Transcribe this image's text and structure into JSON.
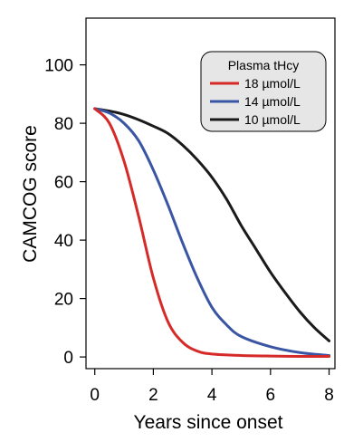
{
  "chart_data": {
    "type": "line",
    "title": "",
    "xlabel": "Years since onset",
    "ylabel": "CAMCOG  score",
    "xlim": [
      -0.3,
      8.2
    ],
    "ylim": [
      -4,
      116
    ],
    "xticks": [
      0,
      2,
      4,
      6,
      8
    ],
    "yticks": [
      0,
      20,
      40,
      60,
      80,
      100
    ],
    "x_tick_labels": [
      "0",
      "2",
      "4",
      "6",
      "8"
    ],
    "y_tick_labels": [
      "0",
      "20",
      "40",
      "60",
      "80",
      "100"
    ],
    "grid": false,
    "legend": {
      "title": "Plasma tHcy",
      "placement": "top-right"
    },
    "series": [
      {
        "name": "18  µmol/L",
        "color": "#d62a28",
        "x": [
          0,
          0.5,
          1,
          1.5,
          2,
          2.5,
          3,
          3.5,
          4,
          5,
          6,
          7,
          8
        ],
        "y": [
          85,
          80,
          67,
          48,
          27,
          12,
          5,
          2,
          1,
          0.5,
          0.3,
          0.2,
          0.2
        ]
      },
      {
        "name": "14 µmol/L",
        "color": "#3a55a4",
        "x": [
          0,
          0.5,
          1,
          1.5,
          2,
          2.5,
          3,
          3.5,
          4,
          4.5,
          5,
          6,
          7,
          8
        ],
        "y": [
          85,
          83.5,
          80,
          74,
          64,
          52,
          39,
          27,
          17,
          11,
          7,
          3.5,
          1.5,
          0.5
        ]
      },
      {
        "name": "10 µmol/L",
        "color": "#1a1a1a",
        "x": [
          0,
          0.5,
          1,
          1.5,
          2,
          2.5,
          3,
          3.5,
          4,
          4.5,
          5,
          5.5,
          6,
          6.5,
          7,
          7.5,
          8
        ],
        "y": [
          85,
          84.2,
          83,
          81.2,
          79,
          76.5,
          72.5,
          67.5,
          61.5,
          54,
          45,
          37,
          29,
          22,
          15.5,
          10,
          5.5
        ]
      }
    ]
  }
}
